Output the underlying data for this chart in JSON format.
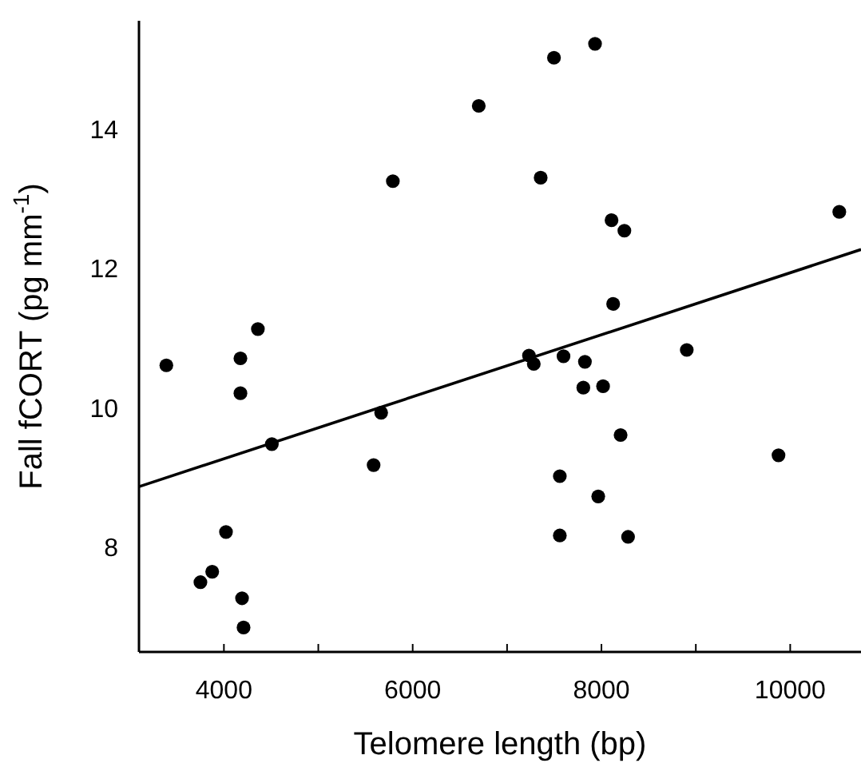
{
  "chart_data": {
    "type": "scatter",
    "xlabel": "Telomere length (bp)",
    "ylabel": "Fall fCORT (pg mm$^{-1}$)",
    "xlim": [
      3100,
      10750
    ],
    "ylim": [
      6.5,
      15.55
    ],
    "xticks": [
      4000,
      {
        "value": 5000,
        "label": null
      },
      6000,
      {
        "value": 7000,
        "label": null
      },
      8000,
      {
        "value": 9000,
        "label": null
      },
      10000
    ],
    "yticks": [
      8,
      10,
      12,
      14
    ],
    "grid": false,
    "marker": "circle",
    "series": [
      {
        "color": "#000000",
        "x": [
          3390,
          4175,
          4175,
          4360,
          4508,
          5790,
          5666,
          5586,
          4022,
          3876,
          3751,
          4192,
          4208,
          6700,
          7497,
          7932,
          7356,
          8107,
          8243,
          10520,
          8124,
          7232,
          7283,
          7598,
          7825,
          8904,
          7808,
          8017,
          8203,
          9876,
          7559,
          7966,
          7559,
          8282
        ],
        "values": [
          10.61,
          10.71,
          10.21,
          11.13,
          9.48,
          13.25,
          9.93,
          9.18,
          8.22,
          7.65,
          7.5,
          7.27,
          6.85,
          14.33,
          15.02,
          15.22,
          13.3,
          12.69,
          12.54,
          12.81,
          11.49,
          10.75,
          10.63,
          10.74,
          10.66,
          10.83,
          10.29,
          10.31,
          9.61,
          9.32,
          9.02,
          8.73,
          8.17,
          8.15
        ]
      },
      {
        "type": "line",
        "color": "#000000",
        "line_style": "solid",
        "marker": "none",
        "x": [
          3100,
          10750
        ],
        "values": [
          8.87,
          12.27
        ]
      }
    ]
  }
}
